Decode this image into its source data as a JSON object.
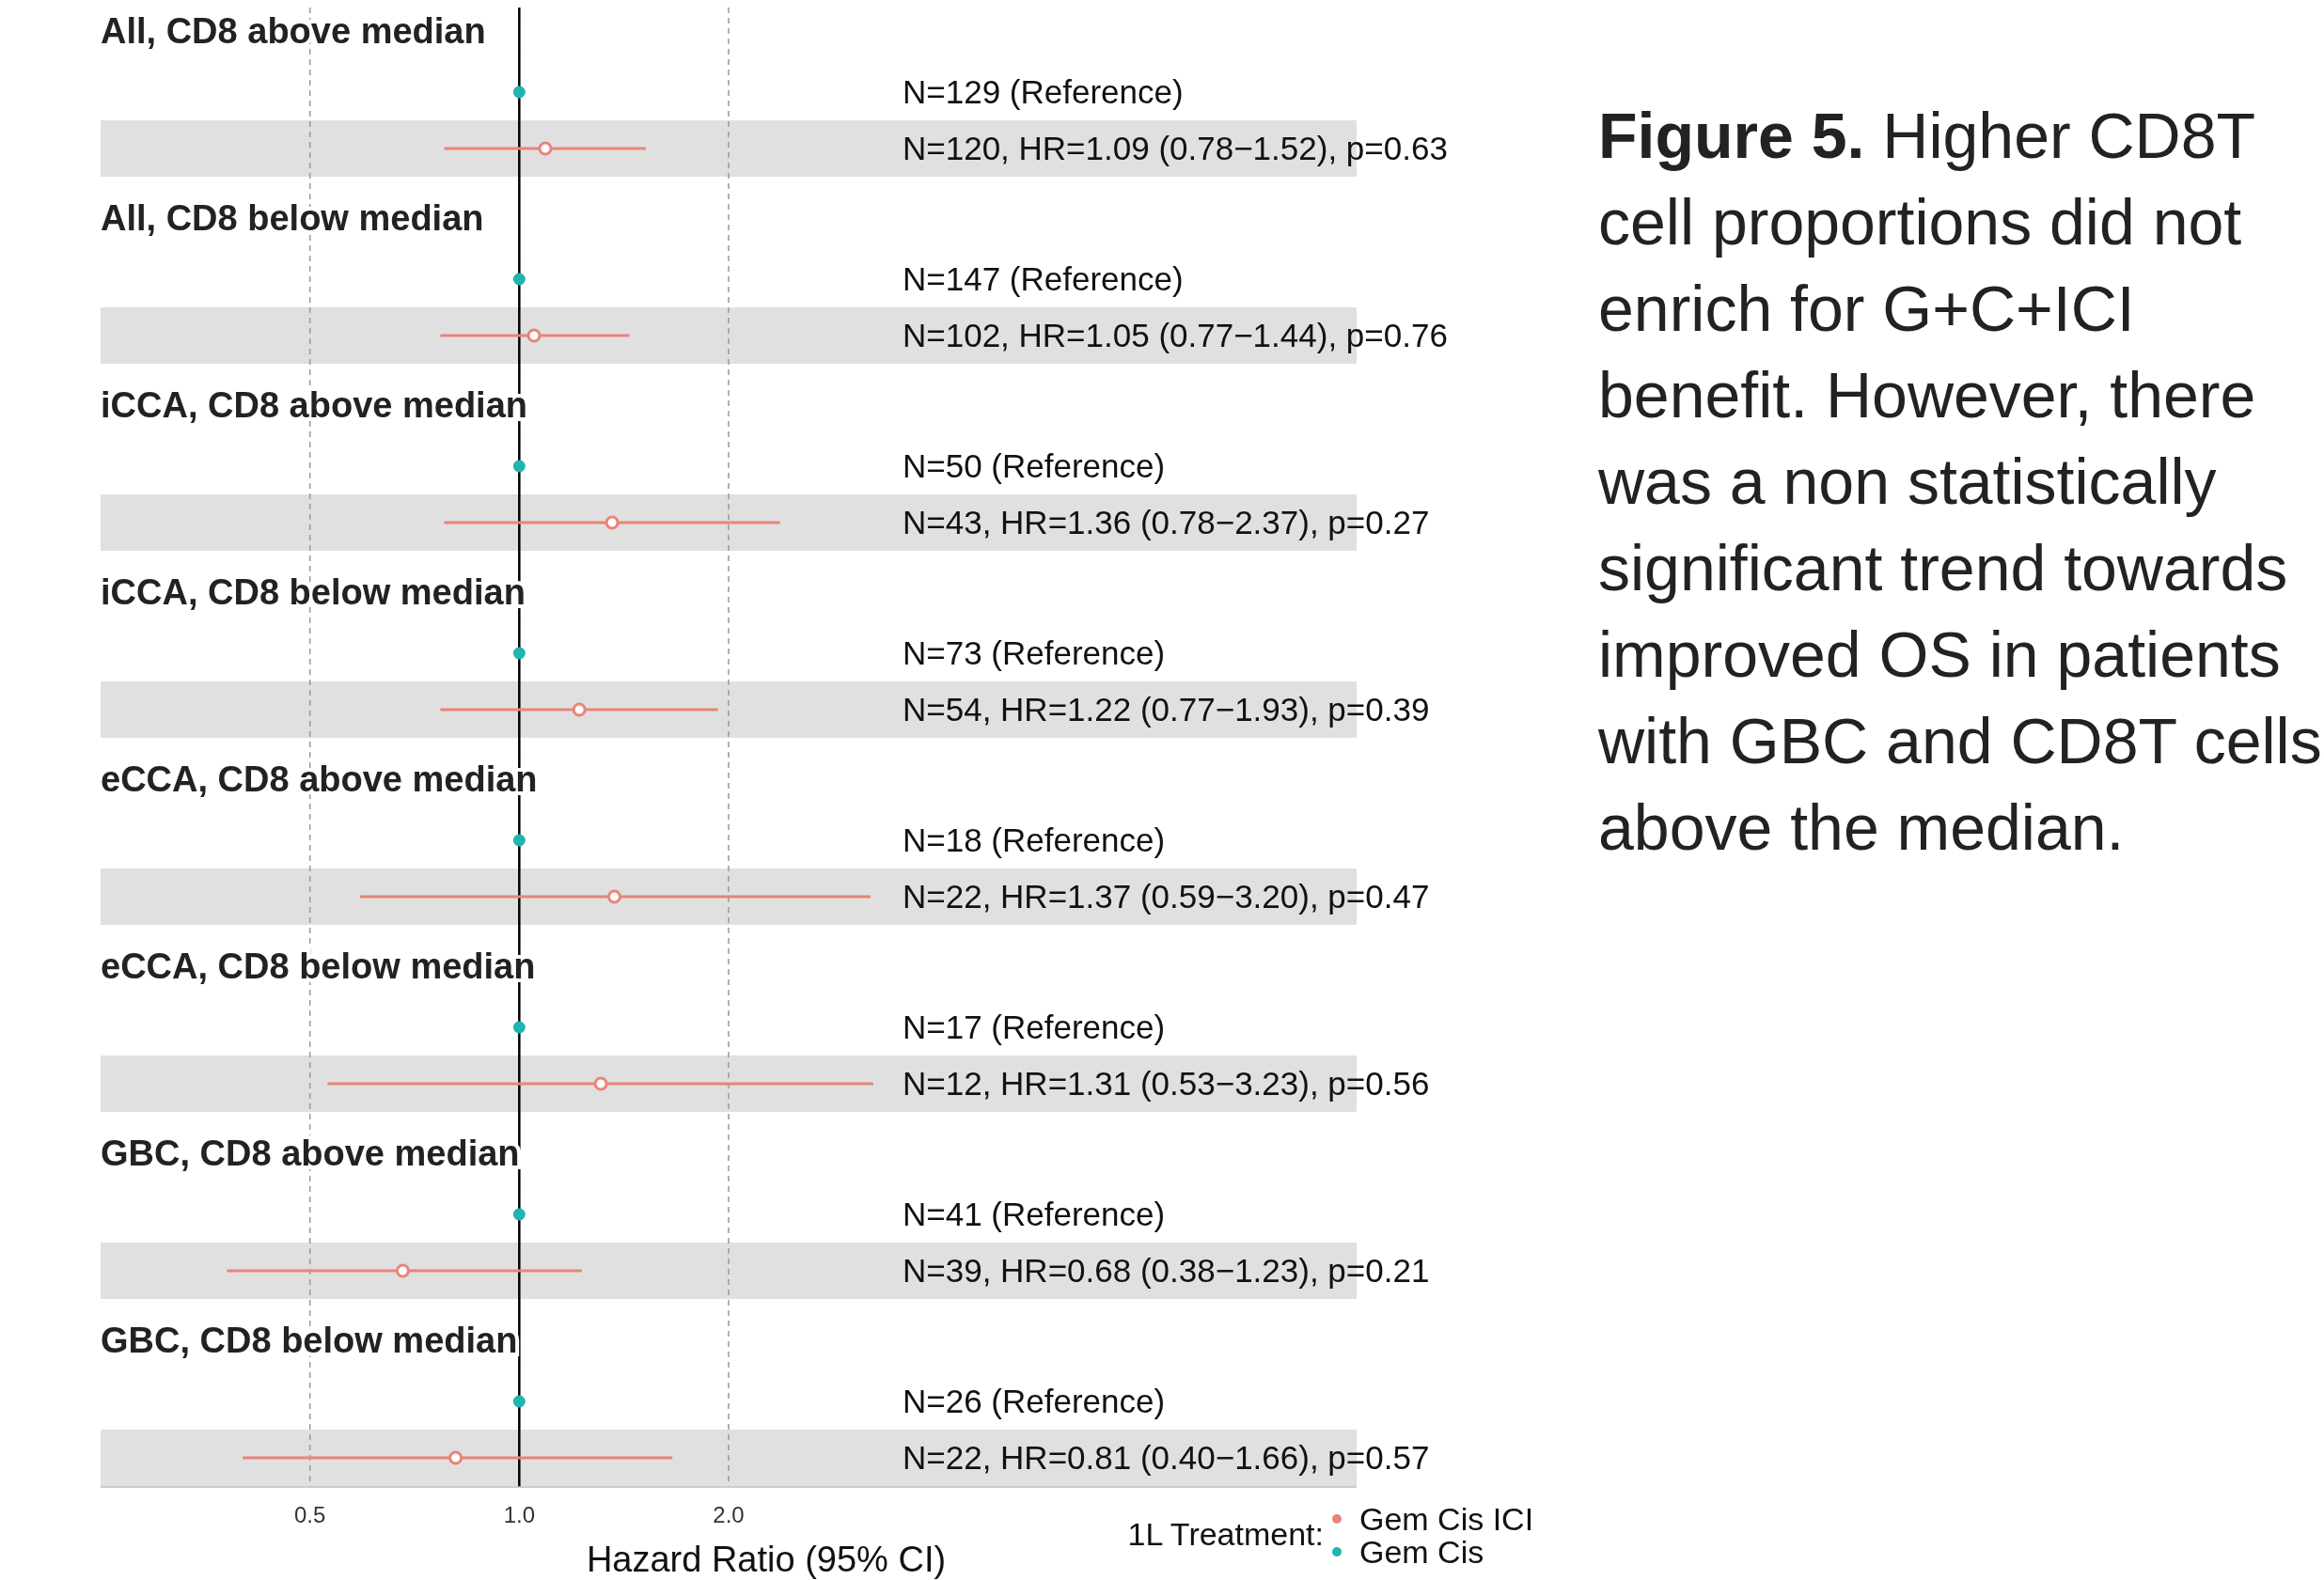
{
  "chart_data": {
    "type": "scatter",
    "orientation": "horizontal",
    "title": "Figure 5.",
    "subtitle": "Higher CD8T cell proportions did not enrich for G+C+ICI benefit. However, there was a non statistically significant trend towards improved OS in patients with GBC and CD8T cells above the median.",
    "xlabel": "Hazard Ratio (95% CI)",
    "legend_title": "1L Treatment:",
    "legend": "bottom right",
    "log": "x",
    "grid": "x",
    "marker": "circle",
    "xlim": [
      0.25,
      16
    ],
    "xticks": [
      {
        "value": 0.5,
        "label": "0.5"
      },
      {
        "value": 1,
        "label": "1.0"
      },
      {
        "value": 2,
        "label": "2.0"
      }
    ],
    "ref_lines": [
      {
        "axis": "x",
        "value": 1,
        "color": "#000000",
        "line_style": "solid"
      }
    ],
    "bands": [
      {
        "axis": "y",
        "from": "N=120, HR=1.09 (0.78−1.52), p=0.63",
        "to": "N=120, HR=1.09 (0.78−1.52), p=0.63",
        "color": "#e0e0e0"
      },
      {
        "axis": "y",
        "from": "N=102, HR=1.05 (0.77−1.44), p=0.76",
        "to": "N=102, HR=1.05 (0.77−1.44), p=0.76",
        "color": "#e0e0e0"
      },
      {
        "axis": "y",
        "from": "N=43, HR=1.36 (0.78−2.37), p=0.27",
        "to": "N=43, HR=1.36 (0.78−2.37), p=0.27",
        "color": "#e0e0e0"
      },
      {
        "axis": "y",
        "from": "N=54, HR=1.22 (0.77−1.93), p=0.39",
        "to": "N=54, HR=1.22 (0.77−1.93), p=0.39",
        "color": "#e0e0e0"
      },
      {
        "axis": "y",
        "from": "N=22, HR=1.37 (0.59−3.20), p=0.47",
        "to": "N=22, HR=1.37 (0.59−3.20), p=0.47",
        "color": "#e0e0e0"
      },
      {
        "axis": "y",
        "from": "N=12, HR=1.31 (0.53−3.23), p=0.56",
        "to": "N=12, HR=1.31 (0.53−3.23), p=0.56",
        "color": "#e0e0e0"
      },
      {
        "axis": "y",
        "from": "N=39, HR=0.68 (0.38−1.23), p=0.21",
        "to": "N=39, HR=0.68 (0.38−1.23), p=0.21",
        "color": "#e0e0e0"
      },
      {
        "axis": "y",
        "from": "N=22, HR=0.81 (0.40−1.66), p=0.57",
        "to": "N=22, HR=0.81 (0.40−1.66), p=0.57",
        "color": "#e0e0e0"
      }
    ],
    "annotations": [
      "All, CD8 above median",
      "All, CD8 below median",
      "iCCA, CD8 above median",
      "iCCA, CD8 below median",
      "eCCA, CD8 above median",
      "eCCA, CD8 below median",
      "GBC, CD8 above median",
      "GBC, CD8 below median"
    ],
    "categories": [
      "N=129 (Reference)",
      "N=120, HR=1.09 (0.78−1.52), p=0.63",
      "N=147 (Reference)",
      "N=102, HR=1.05 (0.77−1.44), p=0.76",
      "N=50 (Reference)",
      "N=43, HR=1.36 (0.78−2.37), p=0.27",
      "N=73 (Reference)",
      "N=54, HR=1.22 (0.77−1.93), p=0.39",
      "N=18 (Reference)",
      "N=22, HR=1.37 (0.59−3.20), p=0.47",
      "N=17 (Reference)",
      "N=12, HR=1.31 (0.53−3.23), p=0.56",
      "N=41 (Reference)",
      "N=39, HR=0.68 (0.38−1.23), p=0.21",
      "N=26 (Reference)",
      "N=22, HR=0.81 (0.40−1.66), p=0.57"
    ],
    "series": [
      {
        "name": "Gem Cis ICI",
        "color": "#e8847a",
        "values": [
          null,
          1.09,
          null,
          1.05,
          null,
          1.36,
          null,
          1.22,
          null,
          1.37,
          null,
          1.31,
          null,
          0.68,
          null,
          0.81
        ],
        "errors": [
          null,
          [
            0.78,
            1.52
          ],
          null,
          [
            0.77,
            1.44
          ],
          null,
          [
            0.78,
            2.37
          ],
          null,
          [
            0.77,
            1.93
          ],
          null,
          [
            0.59,
            3.2
          ],
          null,
          [
            0.53,
            3.23
          ],
          null,
          [
            0.38,
            1.23
          ],
          null,
          [
            0.4,
            1.66
          ]
        ]
      },
      {
        "name": "Gem Cis",
        "color": "#1fb5b0",
        "values": [
          1,
          null,
          1,
          null,
          1,
          null,
          1,
          null,
          1,
          null,
          1,
          null,
          1,
          null,
          1,
          null
        ]
      }
    ]
  }
}
